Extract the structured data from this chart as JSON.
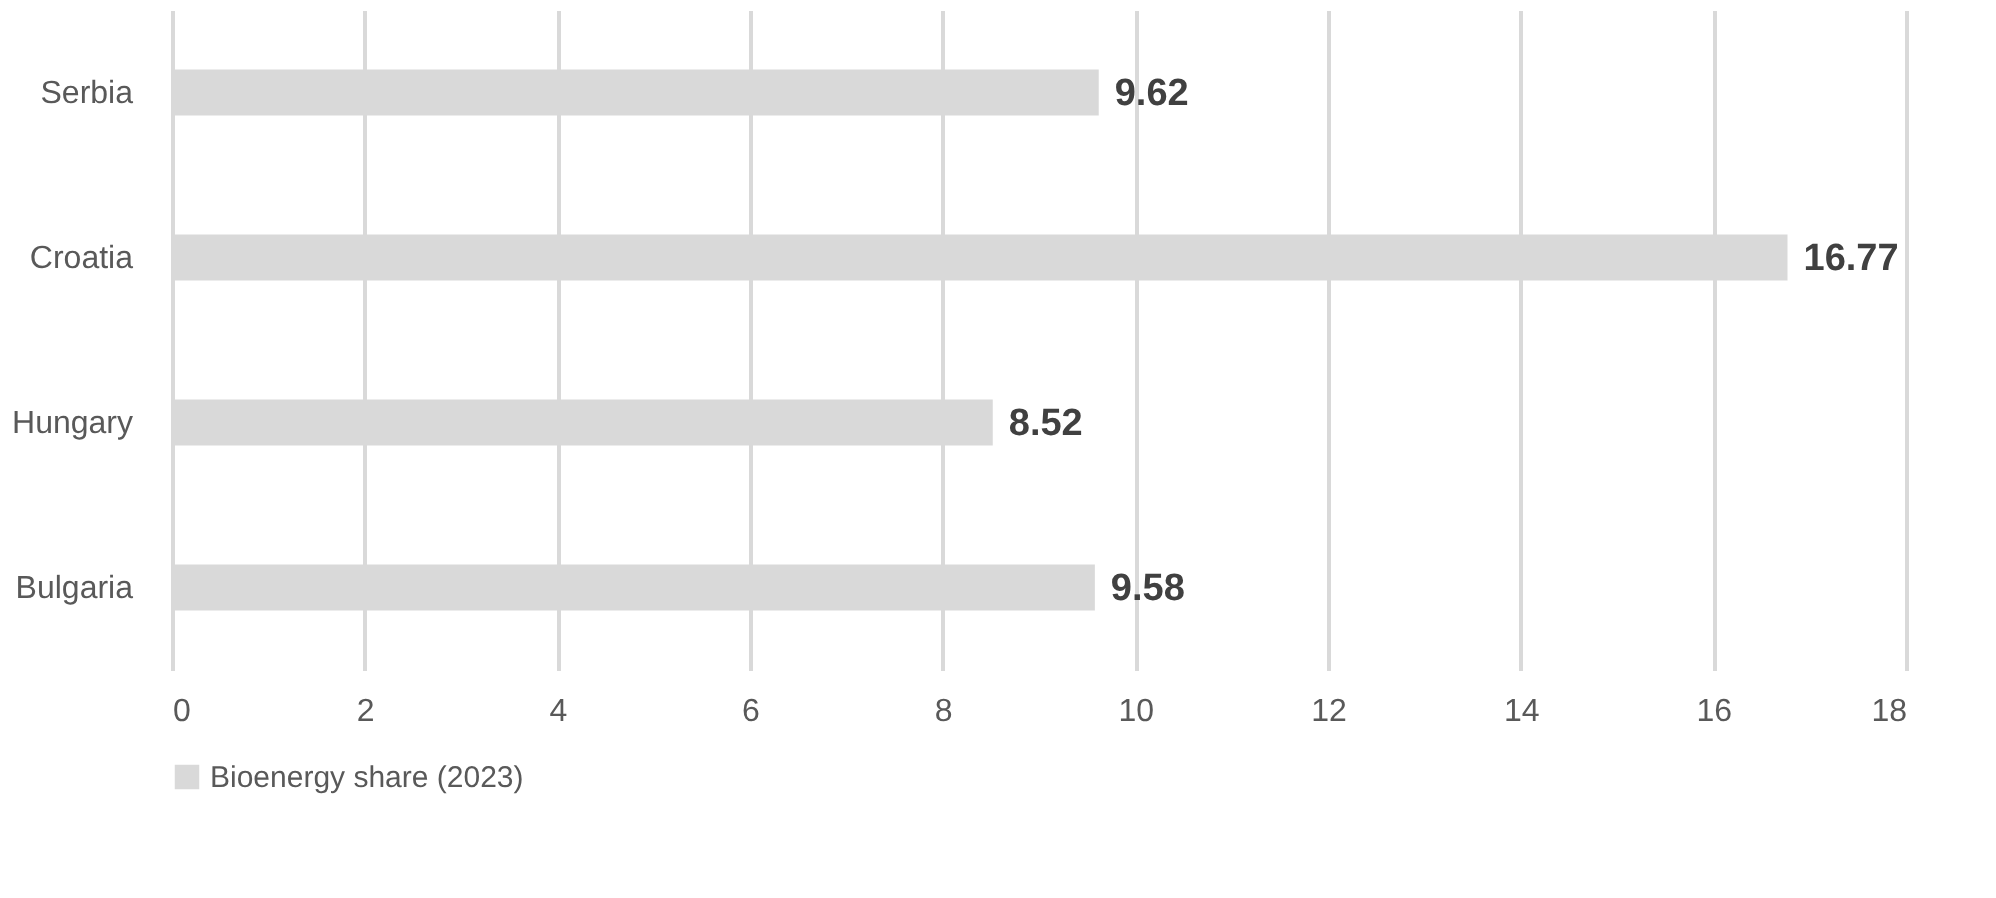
{
  "chart_data": {
    "type": "bar",
    "orientation": "horizontal",
    "categories": [
      "Serbia",
      "Croatia",
      "Hungary",
      "Bulgaria"
    ],
    "series": [
      {
        "name": "Bioenergy share (2023)",
        "color": "#d9d9d9",
        "values": [
          9.62,
          16.77,
          8.52,
          9.58
        ]
      }
    ],
    "xlim": [
      0,
      18
    ],
    "xticks": [
      0,
      2,
      4,
      6,
      8,
      10,
      12,
      14,
      16,
      18
    ],
    "grid": "x",
    "legend": "bottom",
    "data_labels": true
  }
}
